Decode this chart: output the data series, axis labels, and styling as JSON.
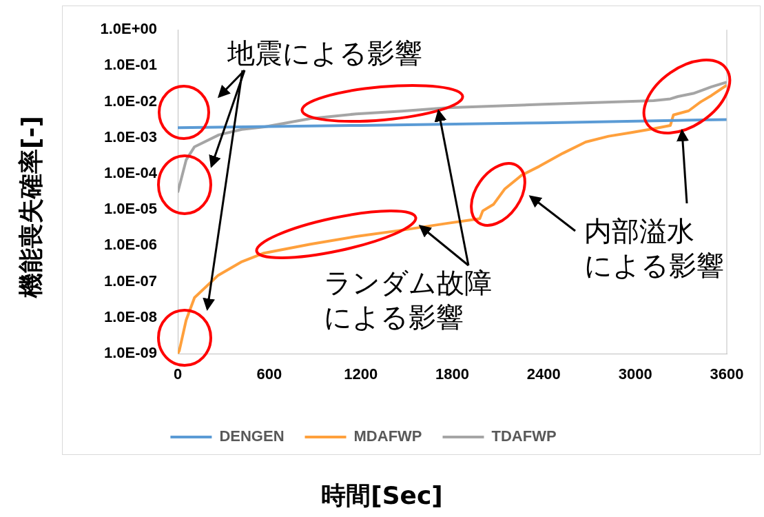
{
  "chart_data": {
    "type": "line",
    "xlabel": "時間[Sec]",
    "ylabel": "機能喪失確率[-]",
    "log": "y",
    "grid": false,
    "legend": "bottom",
    "marker": "none",
    "line_style": "solid",
    "xlim": [
      0,
      3600
    ],
    "xticks": [
      0,
      600,
      1200,
      1800,
      2400,
      3000,
      3600
    ],
    "ylim": [
      1e-09,
      1
    ],
    "yticks": [
      {
        "value": 1,
        "label": "1.0E+00"
      },
      {
        "value": 0.1,
        "label": "1.0E-01"
      },
      {
        "value": 0.01,
        "label": "1.0E-02"
      },
      {
        "value": 0.001,
        "label": "1.0E-03"
      },
      {
        "value": 0.0001,
        "label": "1.0E-04"
      },
      {
        "value": 1e-05,
        "label": "1.0E-05"
      },
      {
        "value": 1e-06,
        "label": "1.0E-06"
      },
      {
        "value": 1e-07,
        "label": "1.0E-07"
      },
      {
        "value": 1e-08,
        "label": "1.0E-08"
      },
      {
        "value": 1e-09,
        "label": "1.0E-09"
      }
    ],
    "series": [
      {
        "name": "DENGEN",
        "color": "#5b9bd5",
        "x": [
          0,
          1200,
          2400,
          3600
        ],
        "values": [
          0.0019,
          0.0022,
          0.0026,
          0.0032
        ]
      },
      {
        "name": "MDAFWP",
        "color": "#ffa03c",
        "x": [
          0,
          10,
          55,
          110,
          265,
          415,
          565,
          870,
          1170,
          1470,
          1770,
          1980,
          2000,
          2070,
          2145,
          2255,
          2370,
          2525,
          2675,
          2825,
          2975,
          3125,
          3230,
          3250,
          3350,
          3430,
          3500,
          3600
        ],
        "values": [
          1e-09,
          1.2e-09,
          8.5e-09,
          3.6e-08,
          1.5e-07,
          3.5e-07,
          6.2e-07,
          1.1e-06,
          1.8e-06,
          2.7e-06,
          4.2e-06,
          5.6e-06,
          9.3e-06,
          1.4e-05,
          3.8e-05,
          9.1e-05,
          0.00016,
          0.00037,
          0.00076,
          0.0011,
          0.0014,
          0.0018,
          0.0022,
          0.0043,
          0.0056,
          0.01,
          0.015,
          0.029
        ]
      },
      {
        "name": "TDAFWP",
        "color": "#a5a5a5",
        "x": [
          0,
          55,
          110,
          270,
          420,
          570,
          870,
          1170,
          1470,
          1770,
          2400,
          3120,
          3230,
          3280,
          3380,
          3500,
          3600
        ],
        "values": [
          3e-05,
          0.00024,
          0.00056,
          0.0012,
          0.0017,
          0.002,
          0.0034,
          0.0046,
          0.0055,
          0.0068,
          0.0085,
          0.0107,
          0.012,
          0.014,
          0.017,
          0.026,
          0.035
        ]
      }
    ],
    "annotations": [
      "地震による影響",
      {
        "text": "ランダム故障による影響",
        "x": 1710,
        "y": 0.0055
      },
      "内部溢水による影響"
    ]
  }
}
